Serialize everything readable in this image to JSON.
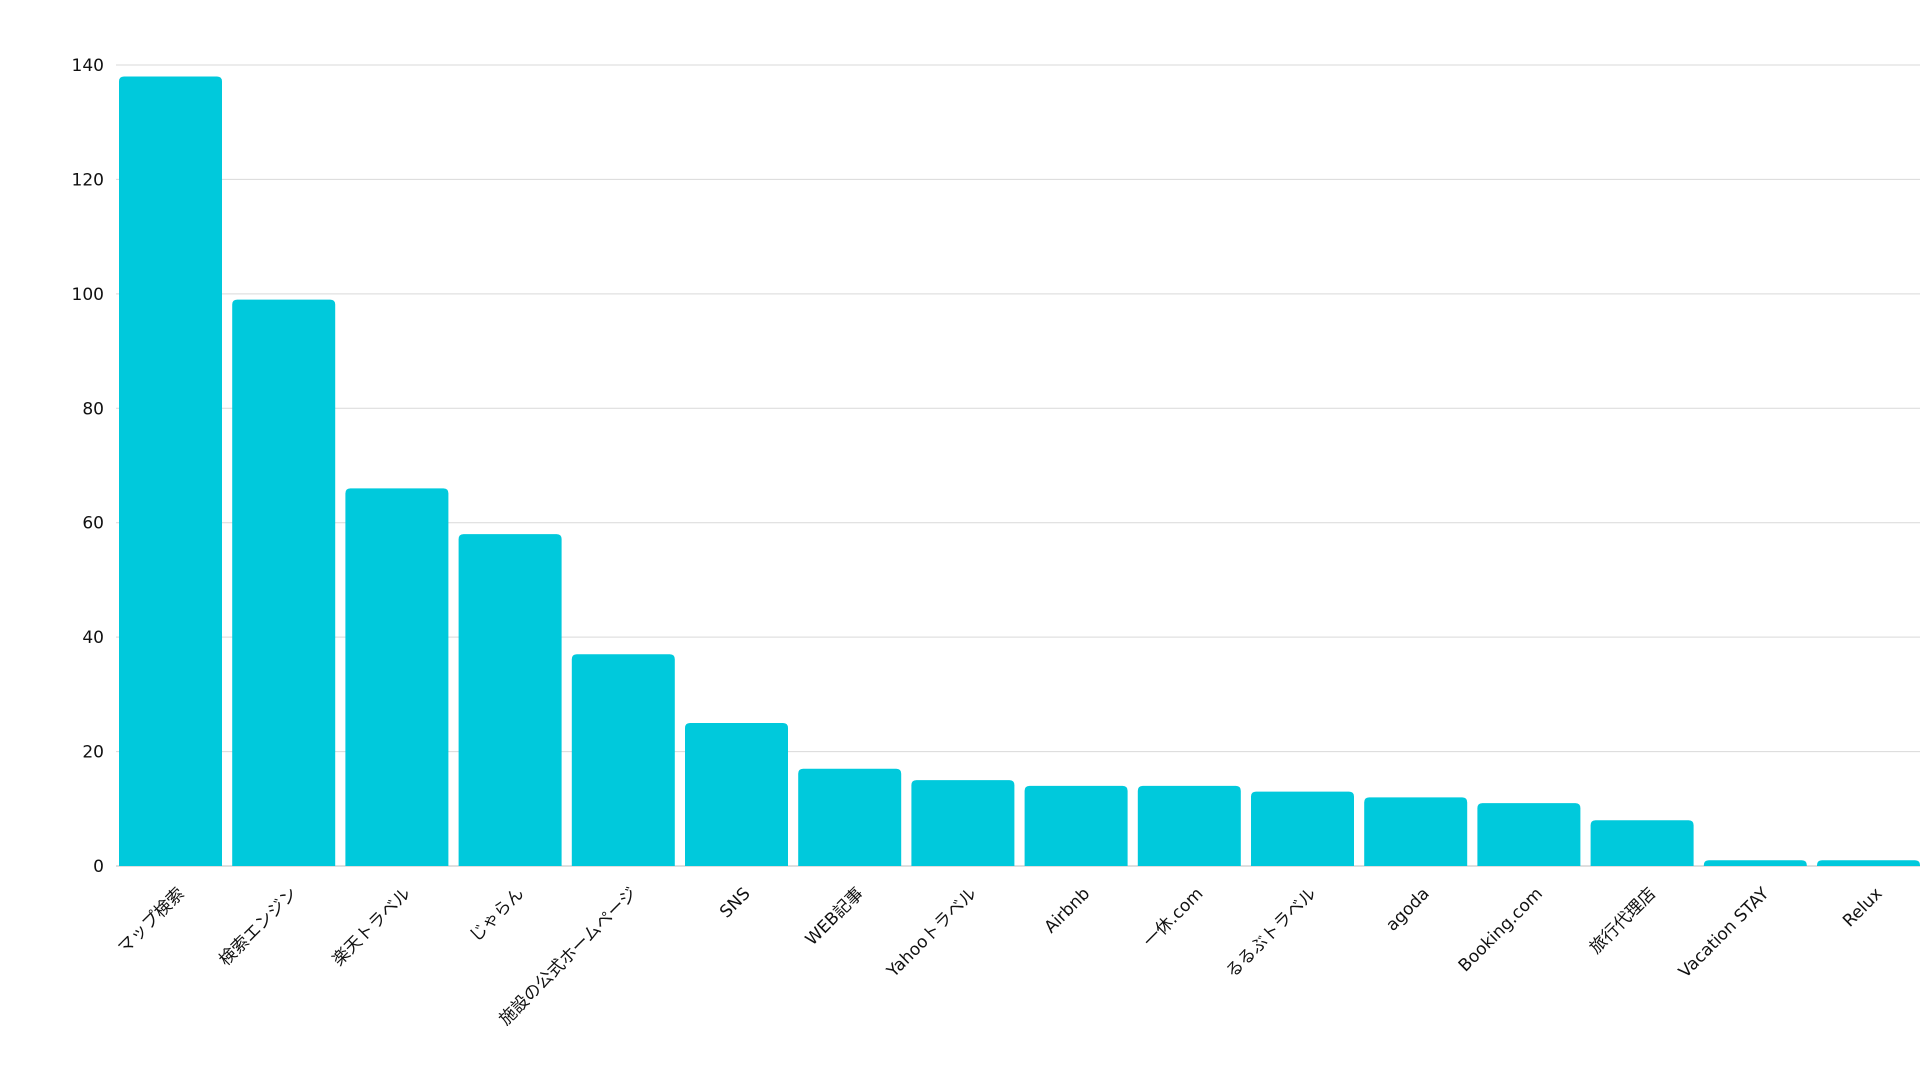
{
  "chart_data": {
    "type": "bar",
    "title": "",
    "xlabel": "",
    "ylabel": "",
    "categories": [
      "マップ検索",
      "検索エンジン",
      "楽天トラベル",
      "じゃらん",
      "施設の公式ホームページ",
      "SNS",
      "WEB記事",
      "Yahooトラベル",
      "Airbnb",
      "一休.com",
      "るるぶトラベル",
      "agoda",
      "Booking.com",
      "旅行代理店",
      "Vacation STAY",
      "Relux"
    ],
    "values": [
      138,
      99,
      66,
      58,
      37,
      25,
      17,
      15,
      14,
      14,
      13,
      12,
      11,
      8,
      1,
      1
    ],
    "ylim": [
      0,
      140
    ],
    "y_ticks": [
      0,
      20,
      40,
      60,
      80,
      100,
      120,
      140
    ],
    "grid": true,
    "legend": "none",
    "colors": {
      "bar": "#00c9dc",
      "grid": "#d9d9d9",
      "text": "#111111"
    }
  }
}
